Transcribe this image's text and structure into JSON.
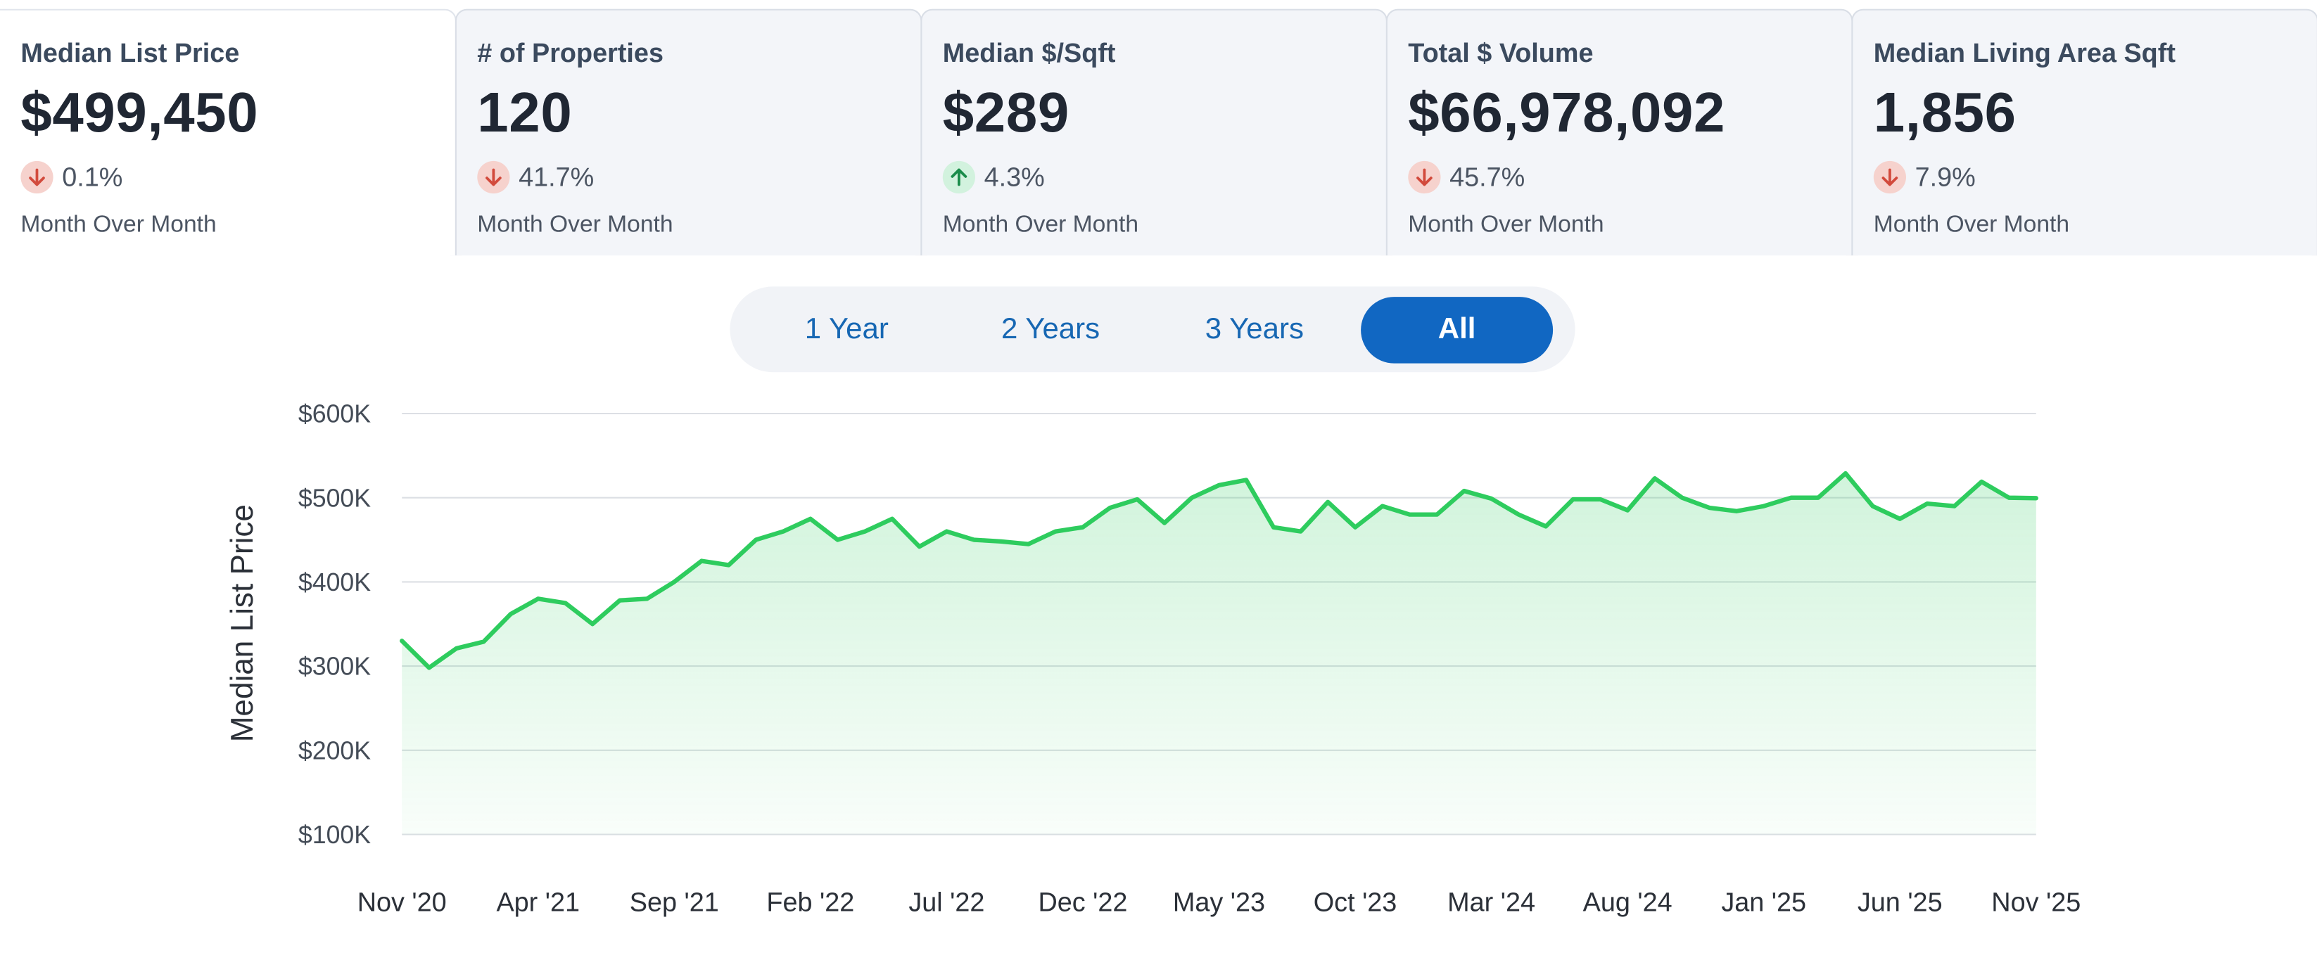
{
  "colors": {
    "line": "#2ecc5e",
    "up": "#1a8c4a",
    "down": "#d24a3c",
    "selected": "#1167c2"
  },
  "tiles": [
    {
      "label": "Median List Price",
      "value": "$499,450",
      "direction": "down",
      "change": "0.1%",
      "period": "Month Over Month",
      "active": true
    },
    {
      "label": "# of Properties",
      "value": "120",
      "direction": "down",
      "change": "41.7%",
      "period": "Month Over Month",
      "active": false
    },
    {
      "label": "Median $/Sqft",
      "value": "$289",
      "direction": "up",
      "change": "4.3%",
      "period": "Month Over Month",
      "active": false
    },
    {
      "label": "Total $ Volume",
      "value": "$66,978,092",
      "direction": "down",
      "change": "45.7%",
      "period": "Month Over Month",
      "active": false
    },
    {
      "label": "Median Living Area Sqft",
      "value": "1,856",
      "direction": "down",
      "change": "7.9%",
      "period": "Month Over Month",
      "active": false
    }
  ],
  "period_buttons": [
    {
      "label": "1 Year",
      "selected": false
    },
    {
      "label": "2 Years",
      "selected": false
    },
    {
      "label": "3 Years",
      "selected": false
    },
    {
      "label": "All",
      "selected": true
    }
  ],
  "chart_data": {
    "type": "area",
    "ylabel": "Median List Price",
    "ylim": [
      100000,
      600000
    ],
    "yticks": [
      100000,
      200000,
      300000,
      400000,
      500000,
      600000
    ],
    "ytick_labels": [
      "$100K",
      "$200K",
      "$300K",
      "$400K",
      "$500K",
      "$600K"
    ],
    "xtick_labels": [
      "Nov '20",
      "Apr '21",
      "Sep '21",
      "Feb '22",
      "Jul '22",
      "Dec '22",
      "May '23",
      "Oct '23",
      "Mar '24",
      "Aug '24",
      "Jan '25",
      "Jun '25",
      "Nov '25"
    ],
    "grid": true,
    "series": [
      {
        "x": [
          "2020-11",
          "2020-12",
          "2021-01",
          "2021-02",
          "2021-03",
          "2021-04",
          "2021-05",
          "2021-06",
          "2021-07",
          "2021-08",
          "2021-09",
          "2021-10",
          "2021-11",
          "2021-12",
          "2022-01",
          "2022-02",
          "2022-03",
          "2022-04",
          "2022-05",
          "2022-06",
          "2022-07",
          "2022-08",
          "2022-09",
          "2022-10",
          "2022-11",
          "2022-12",
          "2023-01",
          "2023-02",
          "2023-03",
          "2023-04",
          "2023-05",
          "2023-06",
          "2023-07",
          "2023-08",
          "2023-09",
          "2023-10",
          "2023-11",
          "2023-12",
          "2024-01",
          "2024-02",
          "2024-03",
          "2024-04",
          "2024-05",
          "2024-06",
          "2024-07",
          "2024-08",
          "2024-09",
          "2024-10",
          "2024-11",
          "2024-12",
          "2025-01",
          "2025-02",
          "2025-03",
          "2025-04",
          "2025-05",
          "2025-06",
          "2025-07",
          "2025-08",
          "2025-09",
          "2025-10",
          "2025-11"
        ],
        "values": [
          330000,
          298000,
          321000,
          329000,
          362000,
          380000,
          375000,
          350000,
          378000,
          380000,
          400000,
          425000,
          420000,
          450000,
          460000,
          475000,
          450000,
          460000,
          475000,
          442000,
          460000,
          450000,
          448000,
          445000,
          460000,
          465000,
          488000,
          498000,
          470000,
          500000,
          515000,
          521000,
          465000,
          460000,
          495000,
          465000,
          490000,
          480000,
          480000,
          508000,
          499000,
          480000,
          466000,
          498000,
          498000,
          485000,
          523000,
          500000,
          488000,
          484000,
          490000,
          500000,
          500000,
          529000,
          490000,
          475000,
          493000,
          490000,
          519000,
          500000,
          499450
        ]
      }
    ]
  }
}
